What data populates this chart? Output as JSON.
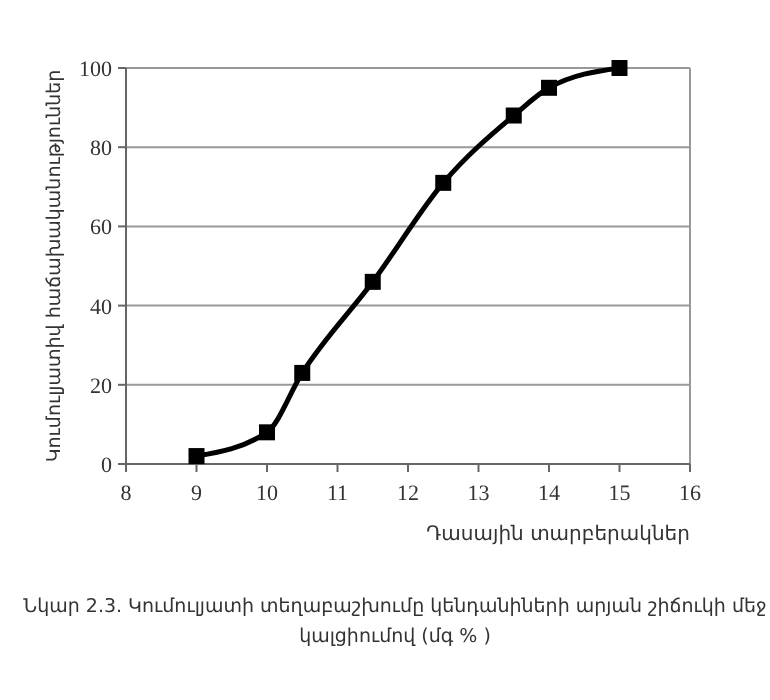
{
  "chart_data": {
    "type": "line",
    "xlabel": "Դասային տարբերակներ",
    "ylabel": "Կումուլյատիվ հաճախականություններ",
    "annotations": [
      "Նկար 2.3. Կումուլյատի տեղաբաշխումը կենդանիների արյան շիճուկի մեջ կալցիումով (մգ % )"
    ],
    "x": [
      9,
      10,
      10.5,
      11.5,
      12.5,
      13.5,
      14,
      15
    ],
    "series": [
      {
        "color": "#000000",
        "values": [
          2,
          8,
          23,
          46,
          71,
          88,
          95,
          100
        ]
      }
    ],
    "xlim": [
      8,
      16
    ],
    "xticks": [
      8,
      9,
      10,
      11,
      12,
      13,
      14,
      15,
      16
    ],
    "ylim": [
      0,
      100
    ],
    "yticks": [
      0,
      20,
      40,
      60,
      80,
      100
    ],
    "grid": "y",
    "marker": "square",
    "line_style": "solid"
  }
}
